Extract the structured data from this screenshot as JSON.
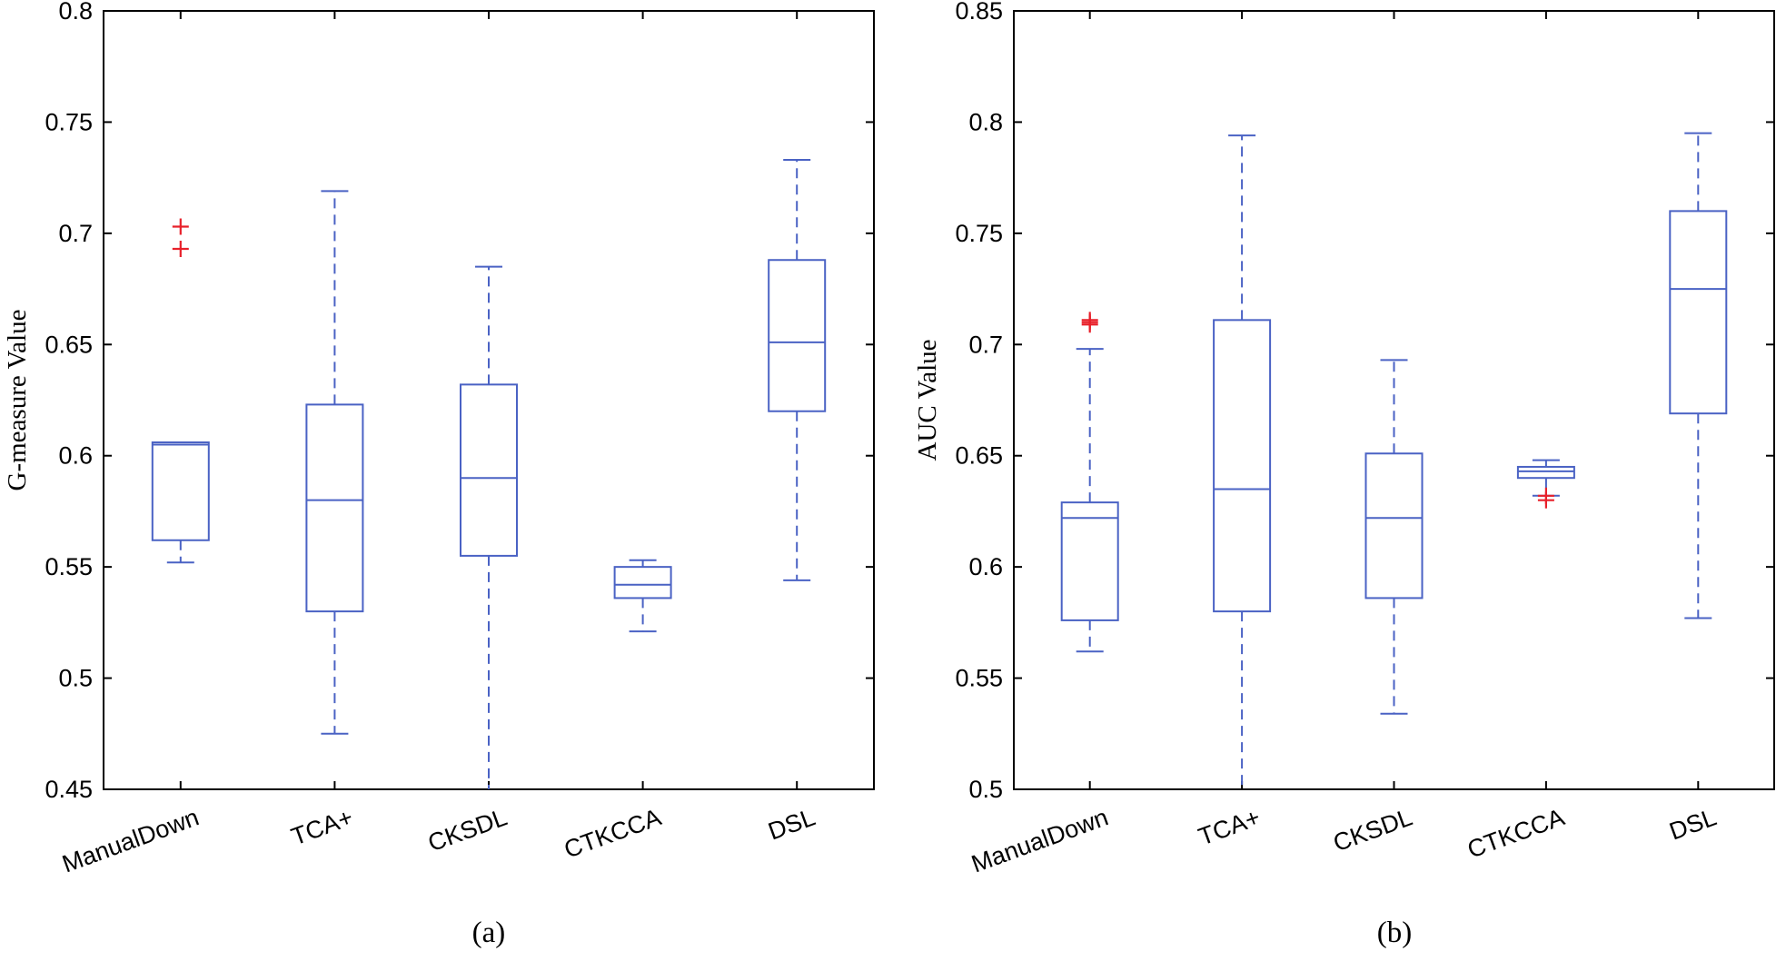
{
  "chart_data": [
    {
      "type": "box",
      "caption": "(a)",
      "ylabel": "G-measure Value",
      "ylim": [
        0.45,
        0.8
      ],
      "yticks": [
        "0.45",
        "0.5",
        "0.55",
        "0.6",
        "0.65",
        "0.7",
        "0.75",
        "0.8"
      ],
      "categories": [
        "ManualDown",
        "TCA+",
        "CKSDL",
        "CTKCCA",
        "DSL"
      ],
      "boxes": [
        {
          "whisker_low": 0.552,
          "q1": 0.562,
          "median": 0.605,
          "q3": 0.606,
          "whisker_high": 0.606,
          "outliers": [
            0.693,
            0.703
          ]
        },
        {
          "whisker_low": 0.475,
          "q1": 0.53,
          "median": 0.58,
          "q3": 0.623,
          "whisker_high": 0.719,
          "outliers": []
        },
        {
          "whisker_low": 0.45,
          "q1": 0.555,
          "median": 0.59,
          "q3": 0.632,
          "whisker_high": 0.685,
          "outliers": []
        },
        {
          "whisker_low": 0.521,
          "q1": 0.536,
          "median": 0.542,
          "q3": 0.55,
          "whisker_high": 0.553,
          "outliers": []
        },
        {
          "whisker_low": 0.544,
          "q1": 0.62,
          "median": 0.651,
          "q3": 0.688,
          "whisker_high": 0.733,
          "outliers": []
        }
      ]
    },
    {
      "type": "box",
      "caption": "(b)",
      "ylabel": "AUC Value",
      "ylim": [
        0.5,
        0.85
      ],
      "yticks": [
        "0.5",
        "0.55",
        "0.6",
        "0.65",
        "0.7",
        "0.75",
        "0.8",
        "0.85"
      ],
      "categories": [
        "ManualDown",
        "TCA+",
        "CKSDL",
        "CTKCCA",
        "DSL"
      ],
      "boxes": [
        {
          "whisker_low": 0.562,
          "q1": 0.576,
          "median": 0.622,
          "q3": 0.629,
          "whisker_high": 0.698,
          "outliers": [
            0.709,
            0.71,
            0.711
          ]
        },
        {
          "whisker_low": 0.5,
          "q1": 0.58,
          "median": 0.635,
          "q3": 0.711,
          "whisker_high": 0.794,
          "outliers": []
        },
        {
          "whisker_low": 0.534,
          "q1": 0.586,
          "median": 0.622,
          "q3": 0.651,
          "whisker_high": 0.693,
          "outliers": []
        },
        {
          "whisker_low": 0.632,
          "q1": 0.64,
          "median": 0.643,
          "q3": 0.645,
          "whisker_high": 0.648,
          "outliers": [
            0.63,
            0.632
          ]
        },
        {
          "whisker_low": 0.577,
          "q1": 0.669,
          "median": 0.725,
          "q3": 0.76,
          "whisker_high": 0.795,
          "outliers": []
        }
      ]
    }
  ]
}
